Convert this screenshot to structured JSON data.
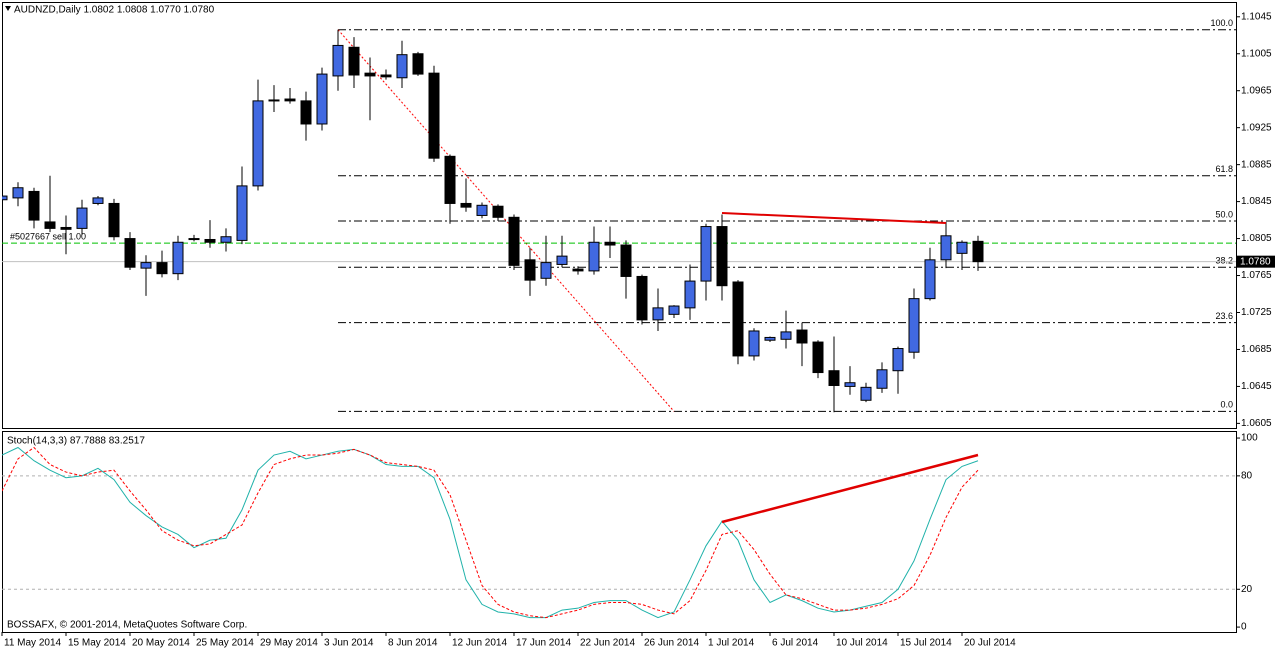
{
  "chart_data": [
    {
      "type": "candlestick",
      "title": "AUDNZD,Daily  1.0802 1.0808 1.0770 1.0780",
      "categories": [
        "11 May 2014",
        null,
        null,
        null,
        "15 May 2014",
        null,
        null,
        null,
        "20 May 2014",
        null,
        null,
        null,
        "25 May 2014",
        null,
        null,
        null,
        "29 May 2014",
        null,
        null,
        null,
        "3 Jun 2014",
        null,
        null,
        null,
        "8 Jun 2014",
        null,
        null,
        null,
        "12 Jun 2014",
        null,
        null,
        null,
        "17 Jun 2014",
        null,
        null,
        null,
        "22 Jun 2014",
        null,
        null,
        null,
        "26 Jun 2014",
        null,
        null,
        null,
        "1 Jul 2014",
        null,
        null,
        null,
        "6 Jul 2014",
        null,
        null,
        null,
        "10 Jul 2014",
        null,
        null,
        null,
        "15 Jul 2014",
        null,
        null,
        null,
        "20 Jul 2014",
        null
      ],
      "open": [
        1.0847,
        1.0849,
        1.0856,
        1.0823,
        1.0817,
        1.0816,
        1.0843,
        1.0843,
        1.0805,
        1.0773,
        1.0779,
        1.0767,
        1.0805,
        1.0804,
        1.0801,
        1.0803,
        1.0862,
        1.0954,
        1.0956,
        1.0954,
        1.0929,
        1.0981,
        1.1012,
        1.0984,
        1.0982,
        1.0979,
        1.1005,
        1.0984,
        1.0894,
        1.0843,
        1.083,
        1.084,
        1.0828,
        1.0782,
        1.0762,
        1.0777,
        1.0772,
        1.077,
        1.0801,
        1.0798,
        1.0764,
        1.0717,
        1.0723,
        1.073,
        1.0759,
        1.0818,
        1.0758,
        1.0678,
        1.0695,
        1.0696,
        1.0706,
        1.0693,
        1.0662,
        1.0645,
        1.063,
        1.0643,
        1.0662,
        1.0682,
        1.074,
        1.0782,
        1.0789,
        1.0802
      ],
      "high": [
        1.0857,
        1.0866,
        1.086,
        1.0873,
        1.083,
        1.0847,
        1.0851,
        1.0848,
        1.0812,
        1.0787,
        1.0792,
        1.0808,
        1.0809,
        1.0825,
        1.0816,
        1.0883,
        1.0977,
        1.0971,
        1.0968,
        1.0964,
        1.099,
        1.1031,
        1.1023,
        1.1001,
        1.0988,
        1.1019,
        1.1007,
        1.0992,
        1.0896,
        1.087,
        1.0844,
        1.0842,
        1.0831,
        1.0795,
        1.0808,
        1.0808,
        1.0775,
        1.0818,
        1.0818,
        1.0803,
        1.0766,
        1.0751,
        1.0733,
        1.0777,
        1.0821,
        1.0831,
        1.076,
        1.0708,
        1.0699,
        1.0727,
        1.0714,
        1.0695,
        1.0699,
        1.0667,
        1.0649,
        1.0671,
        1.0688,
        1.0751,
        1.0795,
        1.0823,
        1.0803,
        1.0808
      ],
      "low": [
        1.0842,
        1.084,
        1.0816,
        1.0812,
        1.0788,
        1.0809,
        1.0841,
        1.0803,
        1.0771,
        1.0743,
        1.0763,
        1.076,
        1.0802,
        1.0795,
        1.0791,
        1.0799,
        1.0857,
        1.0942,
        1.0951,
        1.0911,
        1.0922,
        1.0965,
        1.0968,
        1.0933,
        1.0977,
        1.0968,
        1.0981,
        1.0888,
        1.0821,
        1.0834,
        1.0827,
        1.0824,
        1.0771,
        1.0743,
        1.0754,
        1.0774,
        1.0766,
        1.0766,
        1.0784,
        1.074,
        1.0712,
        1.0705,
        1.0719,
        1.0717,
        1.0738,
        1.0738,
        1.0669,
        1.0673,
        1.0693,
        1.0686,
        1.0667,
        1.0654,
        1.0617,
        1.0636,
        1.0628,
        1.0638,
        1.0637,
        1.0675,
        1.0738,
        1.0773,
        1.0771,
        1.077
      ],
      "close": [
        1.0851,
        1.086,
        1.0825,
        1.0816,
        1.0815,
        1.0838,
        1.0849,
        1.0807,
        1.0774,
        1.0779,
        1.0767,
        1.0801,
        1.0804,
        1.0801,
        1.0807,
        1.0862,
        1.0954,
        1.0955,
        1.0954,
        1.0929,
        1.0983,
        1.1014,
        1.0982,
        1.0981,
        1.098,
        1.1004,
        1.0983,
        1.0892,
        1.0843,
        1.0839,
        1.0841,
        1.0828,
        1.0776,
        1.076,
        1.0779,
        1.0786,
        1.077,
        1.0801,
        1.0798,
        1.0764,
        1.0717,
        1.073,
        1.0732,
        1.0759,
        1.0818,
        1.0754,
        1.0678,
        1.0705,
        1.0698,
        1.0704,
        1.0692,
        1.066,
        1.0646,
        1.0649,
        1.0644,
        1.0663,
        1.0686,
        1.074,
        1.0782,
        1.0808,
        1.0801,
        1.078
      ],
      "up_color": "#4169e1",
      "down_color": "#000000",
      "ylim": [
        1.06,
        1.1061
      ],
      "yticks": [
        1.1045,
        1.1005,
        1.0965,
        1.0925,
        1.0885,
        1.0845,
        1.0805,
        1.0765,
        1.0725,
        1.0685,
        1.0645,
        1.0605
      ],
      "fibo": [
        {
          "label": "100.0",
          "value": 1.1031
        },
        {
          "label": "61.8",
          "value": 1.0873
        },
        {
          "label": "50.0",
          "value": 1.0824
        },
        {
          "label": "38.2",
          "value": 1.0774
        },
        {
          "label": "23.6",
          "value": 1.0714
        },
        {
          "label": "0.0",
          "value": 1.0618
        }
      ],
      "order": {
        "label": "#5027667 sell 1.00",
        "value": 1.08,
        "color": "#00c000"
      },
      "last_price": {
        "value": 1.078,
        "label": "1.0780"
      },
      "footer": "BOSSAFX, © 2001-2014, MetaQuotes Software Corp."
    },
    {
      "type": "line",
      "title": "Stoch(14,3,3) 87.7888 83.2517",
      "series": [
        {
          "color": "#20b2aa",
          "dashed": false,
          "values": [
            91,
            95,
            88,
            83,
            79,
            80,
            84,
            78,
            66,
            59,
            53,
            49,
            42,
            46,
            47,
            62,
            83,
            91,
            93,
            89,
            91,
            93,
            94,
            91,
            86,
            85,
            85,
            79,
            57,
            25,
            12,
            8,
            7,
            5,
            5,
            9,
            10,
            13,
            14,
            14,
            9,
            5,
            8,
            25,
            43,
            56,
            46,
            25,
            13,
            17,
            14,
            10,
            8,
            9,
            11,
            13,
            20,
            35,
            57,
            78,
            85,
            88
          ]
        },
        {
          "color": "#ff0000",
          "dashed": true,
          "values": [
            72,
            89,
            95,
            86,
            82,
            80,
            82,
            83,
            72,
            62,
            51,
            46,
            43,
            44,
            49,
            54,
            71,
            86,
            89,
            91,
            91,
            92,
            94,
            91,
            87,
            86,
            85,
            83,
            70,
            46,
            22,
            12,
            8,
            6,
            5,
            7,
            9,
            12,
            13,
            13,
            12,
            9,
            7,
            14,
            30,
            49,
            51,
            41,
            28,
            17,
            15,
            12,
            9,
            9,
            10,
            12,
            15,
            22,
            38,
            58,
            74,
            83
          ]
        }
      ],
      "ylim": [
        -2.6,
        103.2
      ],
      "yticks": [
        100,
        80,
        20,
        0
      ],
      "levels": [
        80,
        20
      ]
    }
  ]
}
